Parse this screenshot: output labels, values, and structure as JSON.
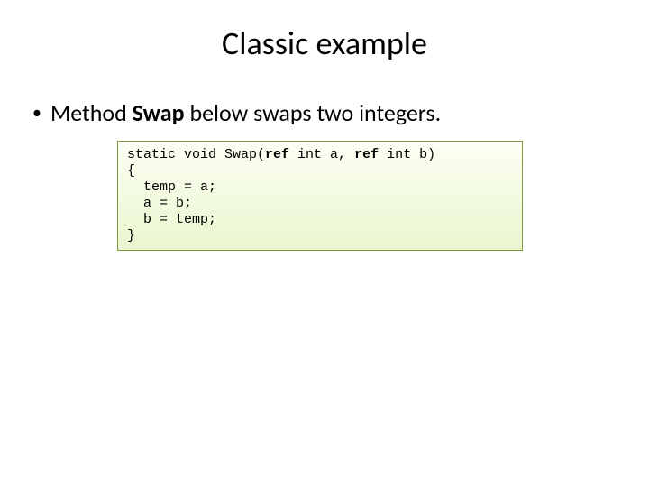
{
  "slide": {
    "title": "Classic example",
    "bullet": {
      "marker": "•",
      "prefix": "Method ",
      "bold": "Swap",
      "suffix": " below swaps two integers."
    },
    "code": {
      "line1_pre": "static void Swap(",
      "line1_kw1": "ref",
      "line1_mid": " int a, ",
      "line1_kw2": "ref",
      "line1_post": " int b)",
      "line2": "{",
      "line3": "  temp = a;",
      "line4": "  a = b;",
      "line5": "  b = temp;",
      "line6": "}"
    },
    "styling": {
      "background_color": "#ffffff",
      "title_fontsize": 36,
      "title_color": "#000000",
      "bullet_fontsize": 26,
      "bullet_color": "#000000",
      "code_fontsize": 15,
      "code_fontfamily": "Courier New",
      "code_box_border": "#7f9940",
      "code_box_gradient_top": "#fcfff4",
      "code_box_gradient_bottom": "#eaf5cf",
      "code_box_width": 450,
      "code_box_marginleft": 130
    }
  }
}
